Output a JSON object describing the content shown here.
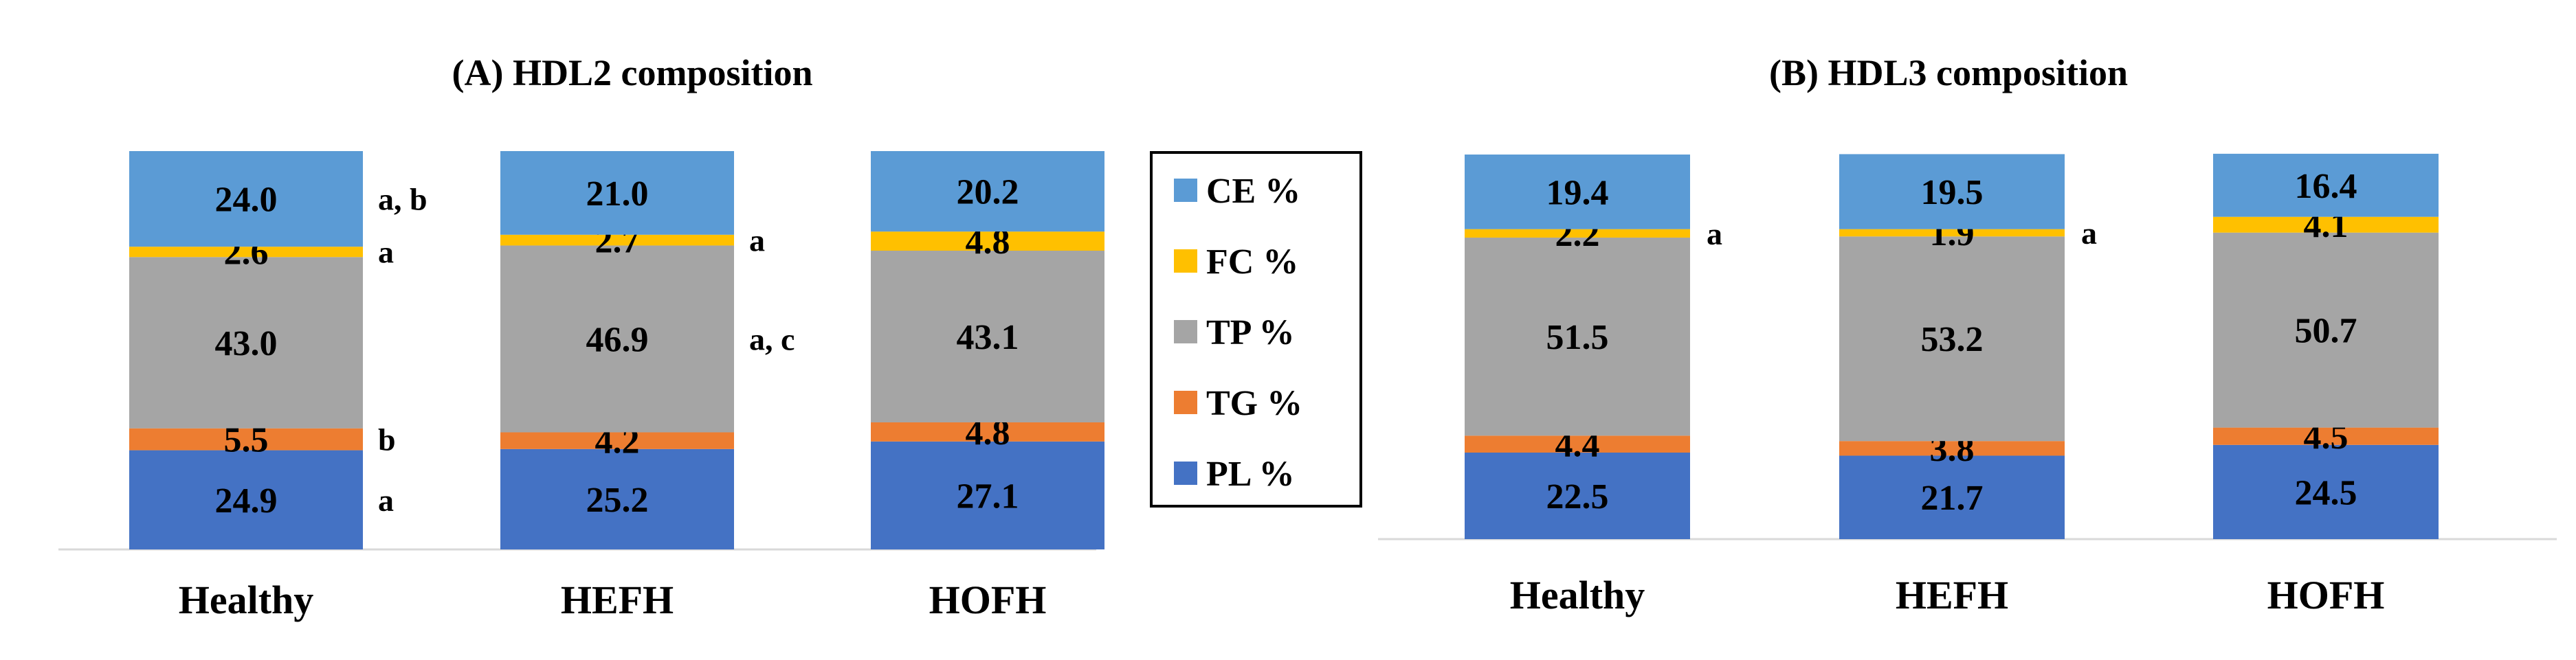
{
  "colors": {
    "CE": "#5B9BD5",
    "FC": "#FFC000",
    "TP": "#A5A5A5",
    "TG": "#ED7D31",
    "PL": "#4472C4",
    "axis": "#D9D9D9"
  },
  "legend": {
    "items": [
      {
        "key": "CE",
        "label": "CE %"
      },
      {
        "key": "FC",
        "label": "FC %"
      },
      {
        "key": "TP",
        "label": "TP %"
      },
      {
        "key": "TG",
        "label": "TG %"
      },
      {
        "key": "PL",
        "label": "PL %"
      }
    ]
  },
  "chart_data": [
    {
      "type": "bar",
      "stacked": true,
      "title": "(A) HDL2 composition",
      "categories": [
        "Healthy",
        "HEFH",
        "HOFH"
      ],
      "series": [
        {
          "name": "PL %",
          "key": "PL",
          "values": [
            24.9,
            25.2,
            27.1
          ],
          "labels": [
            "24.9",
            "25.2",
            "27.1"
          ]
        },
        {
          "name": "TG %",
          "key": "TG",
          "values": [
            5.5,
            4.2,
            4.8
          ],
          "labels": [
            "5.5",
            "4.2",
            "4.8"
          ]
        },
        {
          "name": "TP %",
          "key": "TP",
          "values": [
            43.0,
            46.9,
            43.1
          ],
          "labels": [
            "43.0",
            "46.9",
            "43.1"
          ]
        },
        {
          "name": "FC %",
          "key": "FC",
          "values": [
            2.6,
            2.7,
            4.8
          ],
          "labels": [
            "2.6",
            "2.7",
            "4.8"
          ]
        },
        {
          "name": "CE %",
          "key": "CE",
          "values": [
            24.0,
            21.0,
            20.2
          ],
          "labels": [
            "24.0",
            "21.0",
            "20.2"
          ]
        }
      ],
      "annotations": [
        {
          "category": "Healthy",
          "series": "CE",
          "text": "a, b"
        },
        {
          "category": "Healthy",
          "series": "FC",
          "text": "a"
        },
        {
          "category": "Healthy",
          "series": "TG",
          "text": "b"
        },
        {
          "category": "Healthy",
          "series": "PL",
          "text": "a"
        },
        {
          "category": "HEFH",
          "series": "FC",
          "text": "a"
        },
        {
          "category": "HEFH",
          "series": "TP",
          "text": "a, c"
        }
      ]
    },
    {
      "type": "bar",
      "stacked": true,
      "title": "(B) HDL3 composition",
      "categories": [
        "Healthy",
        "HEFH",
        "HOFH"
      ],
      "series": [
        {
          "name": "PL %",
          "key": "PL",
          "values": [
            22.5,
            21.7,
            24.5
          ],
          "labels": [
            "22.5",
            "21.7",
            "24.5"
          ]
        },
        {
          "name": "TG %",
          "key": "TG",
          "values": [
            4.4,
            3.8,
            4.5
          ],
          "labels": [
            "4.4",
            "3.8",
            "4.5"
          ]
        },
        {
          "name": "TP %",
          "key": "TP",
          "values": [
            51.5,
            53.2,
            50.7
          ],
          "labels": [
            "51.5",
            "53.2",
            "50.7"
          ]
        },
        {
          "name": "FC %",
          "key": "FC",
          "values": [
            2.2,
            1.9,
            4.1
          ],
          "labels": [
            "2.2",
            "1.9",
            "4.1"
          ]
        },
        {
          "name": "CE %",
          "key": "CE",
          "values": [
            19.4,
            19.5,
            16.4
          ],
          "labels": [
            "19.4",
            "19.5",
            "16.4"
          ]
        }
      ],
      "annotations": [
        {
          "category": "Healthy",
          "series": "FC",
          "text": "a"
        },
        {
          "category": "HEFH",
          "series": "FC",
          "text": "a"
        }
      ]
    }
  ]
}
